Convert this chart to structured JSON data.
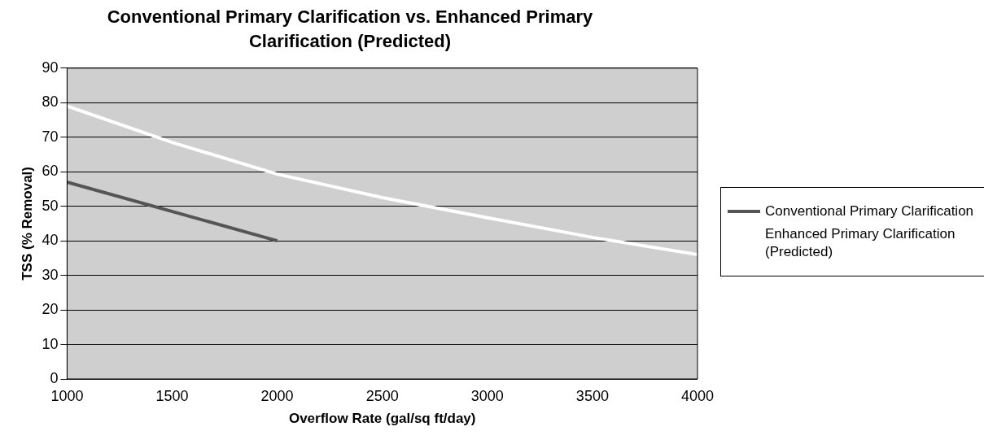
{
  "chart_data": {
    "type": "line",
    "title": "Conventional Primary Clarification vs. Enhanced Primary Clarification (Predicted)",
    "xlabel": "Overflow Rate (gal/sq ft/day)",
    "ylabel": "TSS (% Removal)",
    "x": [
      1000,
      1500,
      2000,
      2500,
      3000,
      3500,
      4000
    ],
    "series": [
      {
        "name": "Conventional Primary Clarification",
        "color": "#555555",
        "x": [
          1000,
          2000
        ],
        "values": [
          57,
          40
        ]
      },
      {
        "name": "Enhanced Primary Clarification (Predicted)",
        "color": "#ffffff",
        "values": [
          79,
          68.5,
          59.3,
          52.5,
          46.7,
          41,
          36
        ]
      }
    ],
    "xlim": [
      1000,
      4000
    ],
    "xticks": [
      1000,
      1500,
      2000,
      2500,
      3000,
      3500,
      4000
    ],
    "ylim": [
      0,
      90
    ],
    "yticks": [
      0,
      10,
      20,
      30,
      40,
      50,
      60,
      70,
      80,
      90
    ],
    "grid": "y",
    "legend": "right",
    "marker": "none",
    "line_style": "solid"
  }
}
